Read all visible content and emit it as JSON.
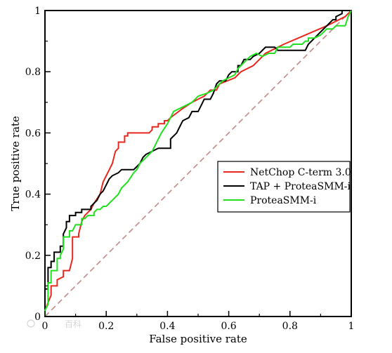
{
  "chart_data": {
    "type": "line",
    "xlabel": "False positive rate",
    "ylabel": "True positive rate",
    "xlim": [
      0,
      1
    ],
    "ylim": [
      0,
      1
    ],
    "xticks": [
      "0",
      "0.2",
      "0.4",
      "0.6",
      "0.8",
      "1"
    ],
    "yticks": [
      "0",
      "0.2",
      "0.4",
      "0.6",
      "0.8",
      "1"
    ],
    "grid": false,
    "legend_position": "right",
    "series": [
      {
        "name": "NetChop C-term 3.0",
        "color": "#e8281e",
        "style": "step",
        "points": [
          [
            0,
            0
          ],
          [
            0,
            0.02
          ],
          [
            0.02,
            0.07
          ],
          [
            0.02,
            0.1
          ],
          [
            0.04,
            0.1
          ],
          [
            0.04,
            0.12
          ],
          [
            0.06,
            0.13
          ],
          [
            0.06,
            0.15
          ],
          [
            0.08,
            0.15
          ],
          [
            0.09,
            0.19
          ],
          [
            0.09,
            0.26
          ],
          [
            0.11,
            0.26
          ],
          [
            0.11,
            0.27
          ],
          [
            0.12,
            0.31
          ],
          [
            0.13,
            0.33
          ],
          [
            0.15,
            0.35
          ],
          [
            0.16,
            0.37
          ],
          [
            0.18,
            0.4
          ],
          [
            0.19,
            0.44
          ],
          [
            0.21,
            0.48
          ],
          [
            0.22,
            0.5
          ],
          [
            0.23,
            0.54
          ],
          [
            0.24,
            0.55
          ],
          [
            0.24,
            0.57
          ],
          [
            0.26,
            0.57
          ],
          [
            0.26,
            0.59
          ],
          [
            0.27,
            0.59
          ],
          [
            0.27,
            0.6
          ],
          [
            0.34,
            0.6
          ],
          [
            0.35,
            0.61
          ],
          [
            0.35,
            0.62
          ],
          [
            0.37,
            0.62
          ],
          [
            0.37,
            0.63
          ],
          [
            0.39,
            0.63
          ],
          [
            0.39,
            0.64
          ],
          [
            0.4,
            0.64
          ],
          [
            0.41,
            0.65
          ],
          [
            0.45,
            0.68
          ],
          [
            0.48,
            0.7
          ],
          [
            0.5,
            0.71
          ],
          [
            0.52,
            0.72
          ],
          [
            0.54,
            0.74
          ],
          [
            0.56,
            0.74
          ],
          [
            0.57,
            0.76
          ],
          [
            0.62,
            0.78
          ],
          [
            0.64,
            0.8
          ],
          [
            0.68,
            0.82
          ],
          [
            0.7,
            0.84
          ],
          [
            0.72,
            0.86
          ],
          [
            0.74,
            0.87
          ],
          [
            0.78,
            0.89
          ],
          [
            0.85,
            0.92
          ],
          [
            0.92,
            0.95
          ],
          [
            0.98,
            0.98
          ],
          [
            1.0,
            1.0
          ]
        ]
      },
      {
        "name": "TAP + ProteaSMM-i",
        "color": "#000000",
        "style": "step",
        "points": [
          [
            0,
            0
          ],
          [
            0,
            0.09
          ],
          [
            0.01,
            0.09
          ],
          [
            0.01,
            0.16
          ],
          [
            0.02,
            0.16
          ],
          [
            0.02,
            0.18
          ],
          [
            0.03,
            0.18
          ],
          [
            0.03,
            0.21
          ],
          [
            0.05,
            0.21
          ],
          [
            0.05,
            0.23
          ],
          [
            0.06,
            0.23
          ],
          [
            0.06,
            0.27
          ],
          [
            0.07,
            0.29
          ],
          [
            0.07,
            0.31
          ],
          [
            0.08,
            0.31
          ],
          [
            0.08,
            0.33
          ],
          [
            0.1,
            0.33
          ],
          [
            0.1,
            0.34
          ],
          [
            0.12,
            0.34
          ],
          [
            0.12,
            0.35
          ],
          [
            0.15,
            0.35
          ],
          [
            0.15,
            0.36
          ],
          [
            0.16,
            0.37
          ],
          [
            0.17,
            0.38
          ],
          [
            0.18,
            0.4
          ],
          [
            0.19,
            0.41
          ],
          [
            0.2,
            0.43
          ],
          [
            0.21,
            0.45
          ],
          [
            0.22,
            0.46
          ],
          [
            0.24,
            0.47
          ],
          [
            0.25,
            0.48
          ],
          [
            0.29,
            0.48
          ],
          [
            0.3,
            0.49
          ],
          [
            0.31,
            0.5
          ],
          [
            0.32,
            0.52
          ],
          [
            0.33,
            0.53
          ],
          [
            0.35,
            0.54
          ],
          [
            0.37,
            0.55
          ],
          [
            0.41,
            0.55
          ],
          [
            0.41,
            0.58
          ],
          [
            0.43,
            0.6
          ],
          [
            0.44,
            0.62
          ],
          [
            0.45,
            0.64
          ],
          [
            0.47,
            0.65
          ],
          [
            0.48,
            0.67
          ],
          [
            0.5,
            0.67
          ],
          [
            0.51,
            0.69
          ],
          [
            0.52,
            0.71
          ],
          [
            0.54,
            0.71
          ],
          [
            0.55,
            0.73
          ],
          [
            0.56,
            0.76
          ],
          [
            0.57,
            0.77
          ],
          [
            0.59,
            0.77
          ],
          [
            0.6,
            0.79
          ],
          [
            0.61,
            0.8
          ],
          [
            0.63,
            0.8
          ],
          [
            0.63,
            0.82
          ],
          [
            0.64,
            0.82
          ],
          [
            0.65,
            0.84
          ],
          [
            0.67,
            0.84
          ],
          [
            0.68,
            0.85
          ],
          [
            0.7,
            0.86
          ],
          [
            0.72,
            0.88
          ],
          [
            0.73,
            0.88
          ],
          [
            0.75,
            0.88
          ],
          [
            0.76,
            0.87
          ],
          [
            0.85,
            0.87
          ],
          [
            0.86,
            0.89
          ],
          [
            0.89,
            0.92
          ],
          [
            0.9,
            0.93
          ],
          [
            0.92,
            0.95
          ],
          [
            0.94,
            0.97
          ],
          [
            0.95,
            0.97
          ],
          [
            0.95,
            0.98
          ],
          [
            0.97,
            0.99
          ],
          [
            0.97,
            1.0
          ],
          [
            1.0,
            1.0
          ]
        ]
      },
      {
        "name": "ProteaSMM-i",
        "color": "#20e020",
        "style": "step",
        "points": [
          [
            0,
            0
          ],
          [
            0,
            0.02
          ],
          [
            0.01,
            0.04
          ],
          [
            0.01,
            0.11
          ],
          [
            0.02,
            0.11
          ],
          [
            0.02,
            0.15
          ],
          [
            0.04,
            0.15
          ],
          [
            0.04,
            0.19
          ],
          [
            0.05,
            0.19
          ],
          [
            0.05,
            0.2
          ],
          [
            0.06,
            0.22
          ],
          [
            0.06,
            0.26
          ],
          [
            0.08,
            0.26
          ],
          [
            0.08,
            0.28
          ],
          [
            0.09,
            0.28
          ],
          [
            0.1,
            0.3
          ],
          [
            0.12,
            0.3
          ],
          [
            0.12,
            0.32
          ],
          [
            0.13,
            0.32
          ],
          [
            0.14,
            0.33
          ],
          [
            0.16,
            0.33
          ],
          [
            0.16,
            0.34
          ],
          [
            0.17,
            0.35
          ],
          [
            0.18,
            0.35
          ],
          [
            0.19,
            0.36
          ],
          [
            0.2,
            0.36
          ],
          [
            0.22,
            0.38
          ],
          [
            0.24,
            0.4
          ],
          [
            0.25,
            0.42
          ],
          [
            0.27,
            0.44
          ],
          [
            0.29,
            0.47
          ],
          [
            0.3,
            0.48
          ],
          [
            0.31,
            0.5
          ],
          [
            0.33,
            0.52
          ],
          [
            0.35,
            0.54
          ],
          [
            0.36,
            0.56
          ],
          [
            0.37,
            0.58
          ],
          [
            0.38,
            0.6
          ],
          [
            0.4,
            0.63
          ],
          [
            0.42,
            0.67
          ],
          [
            0.44,
            0.68
          ],
          [
            0.46,
            0.69
          ],
          [
            0.48,
            0.7
          ],
          [
            0.5,
            0.72
          ],
          [
            0.53,
            0.73
          ],
          [
            0.55,
            0.74
          ],
          [
            0.57,
            0.76
          ],
          [
            0.58,
            0.77
          ],
          [
            0.6,
            0.78
          ],
          [
            0.62,
            0.79
          ],
          [
            0.63,
            0.81
          ],
          [
            0.65,
            0.83
          ],
          [
            0.67,
            0.85
          ],
          [
            0.69,
            0.86
          ],
          [
            0.71,
            0.85
          ],
          [
            0.73,
            0.86
          ],
          [
            0.75,
            0.86
          ],
          [
            0.76,
            0.88
          ],
          [
            0.8,
            0.88
          ],
          [
            0.81,
            0.89
          ],
          [
            0.84,
            0.89
          ],
          [
            0.85,
            0.9
          ],
          [
            0.86,
            0.9
          ],
          [
            0.86,
            0.91
          ],
          [
            0.88,
            0.91
          ],
          [
            0.9,
            0.92
          ],
          [
            0.92,
            0.94
          ],
          [
            0.94,
            0.94
          ],
          [
            0.95,
            0.95
          ],
          [
            0.98,
            0.95
          ],
          [
            0.99,
            0.98
          ],
          [
            1.0,
            1.0
          ]
        ]
      }
    ],
    "reference_line": {
      "points": [
        [
          0,
          0
        ],
        [
          1,
          1
        ]
      ],
      "color": "#c48a8a",
      "style": "dashed"
    }
  },
  "watermark": {
    "text": "百科"
  }
}
